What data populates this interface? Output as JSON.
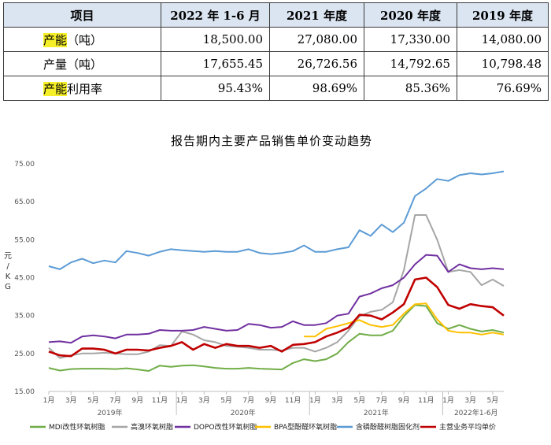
{
  "table": {
    "headers": [
      "项目",
      "2022 年 1-6 月",
      "2021 年度",
      "2020 年度",
      "2019 年度"
    ],
    "rows": [
      {
        "label_hl": "产能",
        "label_rest": "（吨）",
        "values": [
          "18,500.00",
          "27,080.00",
          "17,330.00",
          "14,080.00"
        ]
      },
      {
        "label_hl": "",
        "label_rest": "产量（吨）",
        "values": [
          "17,655.45",
          "26,726.56",
          "14,792.65",
          "10,798.48"
        ]
      },
      {
        "label_hl": "产能",
        "label_rest": "利用率",
        "values": [
          "95.43%",
          "98.69%",
          "85.36%",
          "76.69%"
        ]
      }
    ],
    "highlight_color": "#f5ef2a"
  },
  "chart_data": {
    "type": "line",
    "title": "报告期内主要产品销售单价变动趋势",
    "ylabel": "元/KG",
    "xlabel": "",
    "ylim": [
      15,
      75
    ],
    "yticks": [
      "15.00",
      "25.00",
      "35.00",
      "45.00",
      "55.00",
      "65.00",
      "75.00"
    ],
    "x_tick_labels": [
      "1月",
      "3月",
      "5月",
      "7月",
      "9月",
      "11月",
      "1月",
      "3月",
      "5月",
      "7月",
      "9月",
      "11月",
      "1月",
      "3月",
      "5月",
      "7月",
      "9月",
      "11月",
      "1月",
      "3月",
      "5月"
    ],
    "year_labels": [
      "2019年",
      "2020年",
      "2021年",
      "2022年1-6月"
    ],
    "grid": false,
    "legend_position": "bottom",
    "x": [
      "2019-01",
      "2019-02",
      "2019-03",
      "2019-04",
      "2019-05",
      "2019-06",
      "2019-07",
      "2019-08",
      "2019-09",
      "2019-10",
      "2019-11",
      "2019-12",
      "2020-01",
      "2020-02",
      "2020-03",
      "2020-04",
      "2020-05",
      "2020-06",
      "2020-07",
      "2020-08",
      "2020-09",
      "2020-10",
      "2020-11",
      "2020-12",
      "2021-01",
      "2021-02",
      "2021-03",
      "2021-04",
      "2021-05",
      "2021-06",
      "2021-07",
      "2021-08",
      "2021-09",
      "2021-10",
      "2021-11",
      "2021-12",
      "2022-01",
      "2022-02",
      "2022-03",
      "2022-04",
      "2022-05",
      "2022-06"
    ],
    "series": [
      {
        "name": "MDI改性环氧树脂",
        "color": "#70ad47",
        "values": [
          21.2,
          20.5,
          20.9,
          21.0,
          21.0,
          21.0,
          20.9,
          21.1,
          20.8,
          20.4,
          21.8,
          21.5,
          21.8,
          21.9,
          21.6,
          21.2,
          21.0,
          21.0,
          21.2,
          21.0,
          20.9,
          20.8,
          22.5,
          23.5,
          23.0,
          23.5,
          25.0,
          28.0,
          30.2,
          29.8,
          29.8,
          31.0,
          34.8,
          37.8,
          37.5,
          33.0,
          31.5,
          32.5,
          31.5,
          30.8,
          31.2,
          30.5
        ]
      },
      {
        "name": "高溴环氧树脂",
        "color": "#a6a6a6",
        "values": [
          26.5,
          23.8,
          24.5,
          25.0,
          25.0,
          25.2,
          25.0,
          24.8,
          24.8,
          25.5,
          27.2,
          27.0,
          30.8,
          30.0,
          28.5,
          28.0,
          27.0,
          26.8,
          26.5,
          26.0,
          26.0,
          25.8,
          26.5,
          26.5,
          25.5,
          26.5,
          28.0,
          31.0,
          34.8,
          36.0,
          36.5,
          38.5,
          47.0,
          61.5,
          61.5,
          55.0,
          46.5,
          47.0,
          46.5,
          43.0,
          44.5,
          42.8
        ]
      },
      {
        "name": "DOPO改性环氧树脂",
        "color": "#7030a0",
        "values": [
          28.0,
          28.2,
          27.8,
          29.5,
          29.8,
          29.5,
          29.0,
          30.0,
          30.0,
          30.2,
          31.2,
          31.0,
          31.0,
          31.2,
          32.0,
          31.5,
          31.0,
          31.2,
          32.8,
          32.5,
          31.8,
          32.0,
          33.5,
          32.5,
          32.5,
          33.0,
          35.0,
          35.5,
          40.0,
          40.8,
          42.2,
          43.0,
          45.0,
          48.5,
          51.0,
          50.8,
          46.5,
          48.5,
          47.5,
          47.2,
          47.5,
          47.2
        ]
      },
      {
        "name": "BPA型酚醛环氧树脂",
        "color": "#ffc000",
        "values": [
          null,
          null,
          null,
          null,
          null,
          null,
          null,
          null,
          null,
          null,
          null,
          null,
          null,
          null,
          null,
          null,
          null,
          null,
          null,
          null,
          null,
          null,
          null,
          29.5,
          29.5,
          31.5,
          32.2,
          33.0,
          33.8,
          32.5,
          32.0,
          32.5,
          35.5,
          38.0,
          38.2,
          34.0,
          31.0,
          30.5,
          30.5,
          30.0,
          30.5,
          30.0
        ]
      },
      {
        "name": "含磷酚醛树脂固化剂",
        "color": "#5b9bd5",
        "values": [
          48.0,
          47.2,
          49.0,
          50.0,
          48.8,
          49.5,
          49.0,
          52.0,
          51.5,
          50.8,
          51.8,
          52.5,
          52.2,
          52.0,
          51.8,
          52.0,
          51.8,
          51.8,
          52.5,
          51.5,
          51.2,
          51.5,
          52.0,
          53.5,
          51.8,
          51.8,
          52.5,
          53.0,
          57.5,
          56.0,
          59.0,
          57.0,
          59.5,
          66.5,
          68.5,
          71.0,
          70.5,
          72.0,
          72.5,
          72.2,
          72.5,
          73.0
        ]
      },
      {
        "name": "主营业务平均单价",
        "color": "#c00000",
        "values": [
          25.5,
          24.5,
          24.3,
          26.3,
          26.3,
          26.0,
          25.0,
          26.0,
          26.0,
          25.8,
          26.5,
          27.0,
          28.0,
          26.0,
          27.5,
          26.5,
          27.5,
          27.0,
          27.0,
          26.5,
          27.0,
          25.5,
          27.3,
          27.5,
          28.0,
          29.5,
          30.5,
          31.8,
          35.2,
          35.0,
          34.0,
          35.8,
          38.0,
          44.5,
          45.0,
          42.5,
          37.8,
          36.8,
          38.0,
          37.5,
          37.2,
          35.0
        ]
      }
    ]
  }
}
